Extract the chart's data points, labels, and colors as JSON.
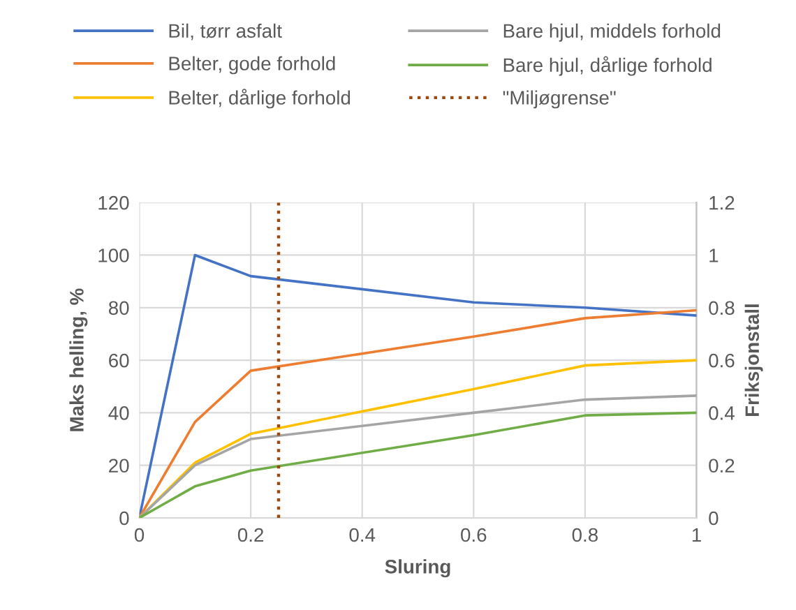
{
  "chart_data": {
    "type": "line",
    "xlabel": "Sluring",
    "ylabel": "Maks helling, %",
    "y2label": "Friksjonstall",
    "x": [
      0,
      0.1,
      0.2,
      0.6,
      0.8,
      1
    ],
    "series": [
      {
        "name": "Bil, tørr asfalt",
        "color": "#4472c4",
        "values": [
          0,
          100,
          92,
          82,
          80,
          77
        ]
      },
      {
        "name": "Belter, gode forhold",
        "color": "#ed7d31",
        "values": [
          0,
          36.5,
          56,
          69,
          76,
          79
        ]
      },
      {
        "name": "Belter, dårlige forhold",
        "color": "#ffc000",
        "values": [
          0,
          21,
          32,
          49,
          58,
          60
        ]
      },
      {
        "name": "Bare hjul, middels forhold",
        "color": "#a5a5a5",
        "values": [
          0,
          20,
          30,
          40,
          45,
          46.5
        ]
      },
      {
        "name": "Bare hjul, dårlige forhold",
        "color": "#70ad47",
        "values": [
          0,
          12,
          18,
          31.5,
          39,
          40
        ]
      },
      {
        "name": "\"Miljøgrense\"",
        "color": "#9e480e",
        "x": [
          0.25,
          0.25
        ],
        "values": [
          0,
          120
        ],
        "line_style": "dotted"
      }
    ],
    "xlim": [
      0,
      1
    ],
    "xticks": [
      0,
      0.2,
      0.4,
      0.6,
      0.8,
      1
    ],
    "ylim": [
      0,
      120
    ],
    "yticks": [
      0,
      20,
      40,
      60,
      80,
      100,
      120
    ],
    "y2lim": [
      0,
      1.2
    ],
    "y2ticks": [
      0,
      0.2,
      0.4,
      0.6,
      0.8,
      1,
      1.2
    ],
    "grid": true,
    "legend": "top",
    "marker": "none",
    "line_style": "solid"
  }
}
